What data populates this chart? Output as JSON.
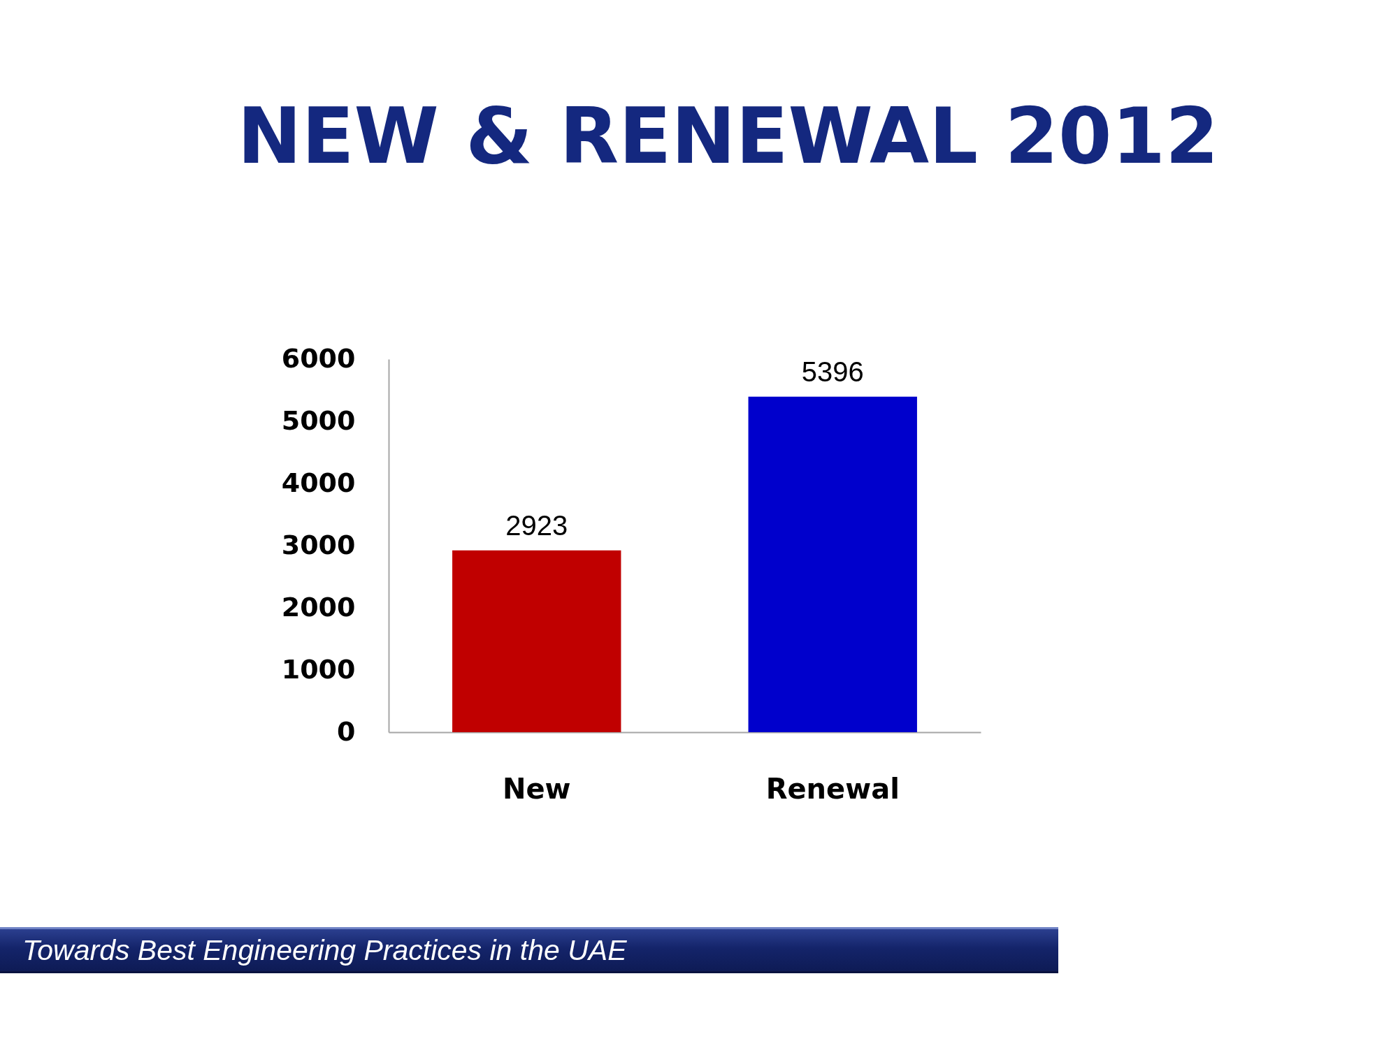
{
  "chart_data": {
    "type": "bar",
    "title": "NEW & RENEWAL 2012",
    "categories": [
      "New",
      "Renewal"
    ],
    "values": [
      2923,
      5396
    ],
    "colors": [
      "#c00000",
      "#0000cc"
    ],
    "ylim": [
      0,
      6000
    ],
    "yticks": [
      0,
      1000,
      2000,
      3000,
      4000,
      5000,
      6000
    ],
    "grid": false,
    "legend": false,
    "data_labels": true,
    "annotations": [
      "Towards Best Engineering Practices in the UAE"
    ]
  }
}
